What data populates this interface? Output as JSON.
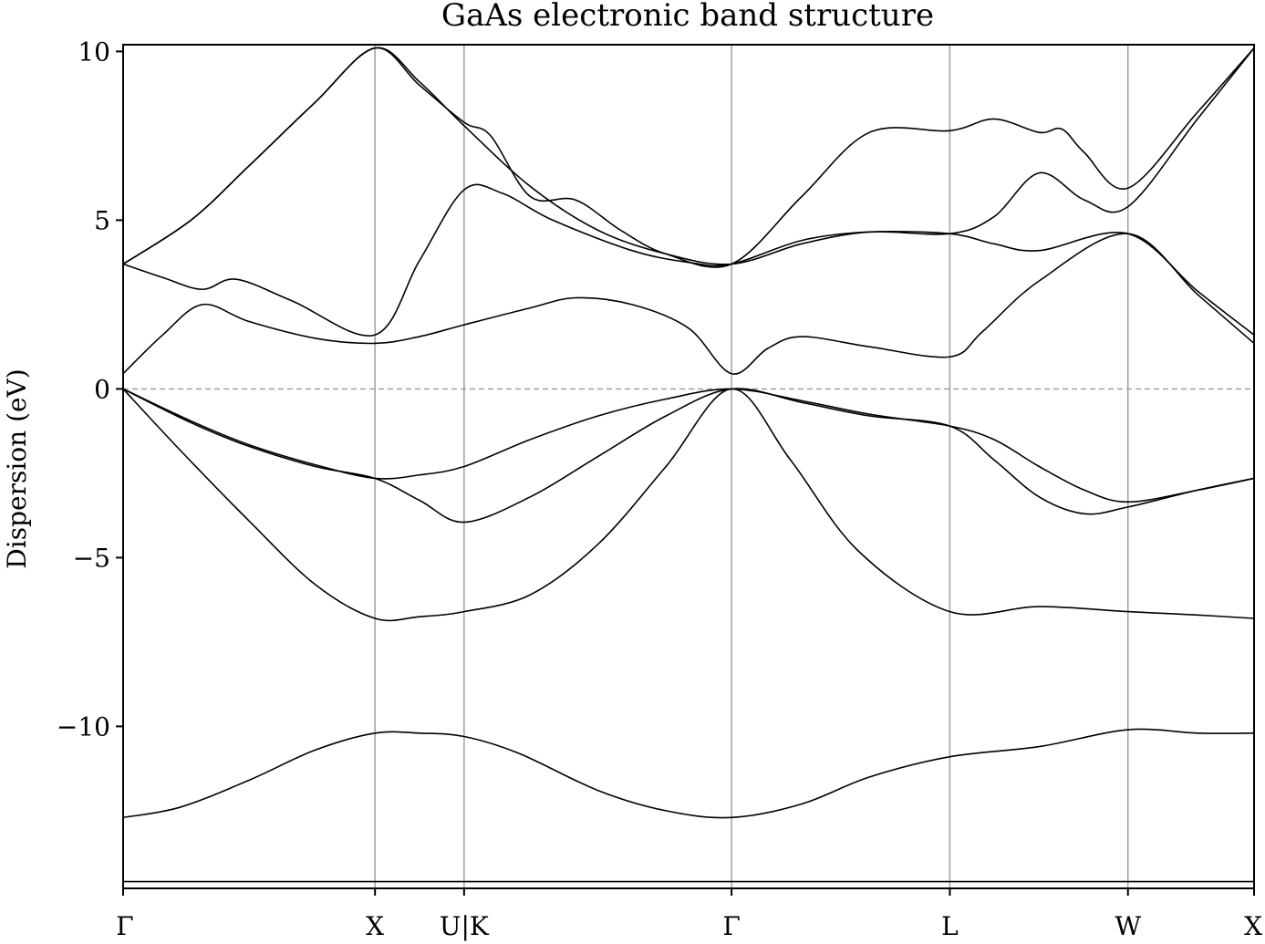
{
  "chart_data": {
    "type": "line",
    "title": "GaAs electronic band structure",
    "xlabel": "",
    "ylabel": "Dispersion (eV)",
    "ylim": [
      -14.8,
      10.2
    ],
    "xlim": [
      0,
      1
    ],
    "yticks": [
      10,
      5,
      0,
      -5,
      -10
    ],
    "ytick_labels": [
      "10",
      "5",
      "0",
      "−5",
      "−10"
    ],
    "high_symmetry_points": [
      {
        "label": "Γ",
        "x": 0.0
      },
      {
        "label": "X",
        "x": 0.2227
      },
      {
        "label": "U|K",
        "x": 0.3015
      },
      {
        "label": "Γ",
        "x": 0.538
      },
      {
        "label": "L",
        "x": 0.731
      },
      {
        "label": "W",
        "x": 0.8885
      },
      {
        "label": "X",
        "x": 1.0
      }
    ],
    "reference_line": {
      "y": 0,
      "style": "dashed"
    },
    "grid": "vertical lines at high-symmetry points",
    "colors": {
      "bands": "#000000",
      "gridlines": "#999999"
    },
    "series": [
      {
        "x": [
          0,
          0.111,
          0.2227,
          0.262,
          0.3015,
          0.42,
          0.538,
          0.635,
          0.731,
          0.81,
          0.8885,
          0.95,
          1.0
        ],
        "y": [
          -14.8,
          -14.8,
          -14.8,
          -14.8,
          -14.8,
          -14.8,
          -14.8,
          -14.8,
          -14.8,
          -14.8,
          -14.8,
          -14.8,
          -14.8
        ]
      },
      {
        "x": [
          0,
          0.111,
          0.2227,
          0.262,
          0.3015,
          0.42,
          0.538,
          0.635,
          0.731,
          0.81,
          0.8885,
          0.95,
          1.0
        ],
        "y": [
          -14.6,
          -14.6,
          -14.6,
          -14.6,
          -14.6,
          -14.6,
          -14.6,
          -14.6,
          -14.6,
          -14.6,
          -14.6,
          -14.6,
          -14.6
        ]
      },
      {
        "x": [
          0,
          0.05,
          0.111,
          0.17,
          0.2227,
          0.262,
          0.3015,
          0.35,
          0.42,
          0.48,
          0.538,
          0.6,
          0.66,
          0.731,
          0.81,
          0.8885,
          0.95,
          1.0
        ],
        "y": [
          -12.7,
          -12.4,
          -11.6,
          -10.7,
          -10.2,
          -10.2,
          -10.3,
          -10.8,
          -11.9,
          -12.5,
          -12.7,
          -12.3,
          -11.5,
          -10.9,
          -10.6,
          -10.1,
          -10.2,
          -10.2
        ]
      },
      {
        "x": [
          0,
          0.05,
          0.111,
          0.17,
          0.2227,
          0.262,
          0.3015,
          0.36,
          0.42,
          0.48,
          0.538,
          0.59,
          0.65,
          0.731,
          0.81,
          0.8885,
          0.95,
          1.0
        ],
        "y": [
          0,
          -1.8,
          -3.9,
          -5.8,
          -6.8,
          -6.75,
          -6.6,
          -6.1,
          -4.6,
          -2.3,
          0,
          -2.1,
          -4.8,
          -6.6,
          -6.45,
          -6.6,
          -6.7,
          -6.8
        ]
      },
      {
        "x": [
          0,
          0.06,
          0.111,
          0.17,
          0.2227,
          0.262,
          0.3015,
          0.36,
          0.42,
          0.48,
          0.538,
          0.6,
          0.66,
          0.731,
          0.77,
          0.81,
          0.85,
          0.8885,
          0.95,
          1.0
        ],
        "y": [
          0,
          -1.0,
          -1.7,
          -2.3,
          -2.65,
          -3.3,
          -3.95,
          -3.2,
          -2.0,
          -0.8,
          0,
          -0.4,
          -0.8,
          -1.1,
          -2.1,
          -3.2,
          -3.7,
          -3.5,
          -3.0,
          -2.65
        ]
      },
      {
        "x": [
          0,
          0.06,
          0.111,
          0.17,
          0.2227,
          0.262,
          0.3015,
          0.36,
          0.42,
          0.48,
          0.538,
          0.6,
          0.66,
          0.731,
          0.77,
          0.81,
          0.85,
          0.8885,
          0.95,
          1.0
        ],
        "y": [
          0,
          -0.95,
          -1.65,
          -2.25,
          -2.65,
          -2.55,
          -2.3,
          -1.5,
          -0.8,
          -0.3,
          0,
          -0.35,
          -0.75,
          -1.1,
          -1.5,
          -2.3,
          -3.0,
          -3.35,
          -3.0,
          -2.65
        ]
      },
      {
        "x": [
          0,
          0.035,
          0.07,
          0.111,
          0.17,
          0.2227,
          0.262,
          0.3015,
          0.36,
          0.4,
          0.45,
          0.5,
          0.538,
          0.57,
          0.6,
          0.66,
          0.731,
          0.76,
          0.81,
          0.8885,
          0.95,
          1.0
        ],
        "y": [
          0.45,
          1.6,
          2.5,
          2.0,
          1.5,
          1.35,
          1.55,
          1.9,
          2.4,
          2.7,
          2.5,
          1.8,
          0.45,
          1.2,
          1.55,
          1.25,
          0.95,
          1.7,
          3.2,
          4.6,
          2.8,
          1.35
        ]
      },
      {
        "x": [
          0,
          0.035,
          0.07,
          0.1,
          0.15,
          0.2227,
          0.262,
          0.3015,
          0.335,
          0.38,
          0.45,
          0.5,
          0.538,
          0.6,
          0.66,
          0.731,
          0.77,
          0.81,
          0.8885,
          0.95,
          1.0
        ],
        "y": [
          3.7,
          3.3,
          2.95,
          3.25,
          2.6,
          1.6,
          3.8,
          5.9,
          5.8,
          5.0,
          4.1,
          3.75,
          3.7,
          4.4,
          4.65,
          4.6,
          4.3,
          4.1,
          4.6,
          2.9,
          1.6
        ]
      },
      {
        "x": [
          0,
          0.06,
          0.111,
          0.17,
          0.2227,
          0.262,
          0.3015,
          0.36,
          0.42,
          0.48,
          0.538,
          0.6,
          0.66,
          0.731,
          0.77,
          0.81,
          0.85,
          0.8885,
          0.95,
          1.0
        ],
        "y": [
          3.7,
          5.0,
          6.6,
          8.5,
          10.1,
          9.1,
          7.8,
          6.0,
          4.7,
          4.0,
          3.7,
          4.3,
          4.65,
          4.6,
          5.1,
          6.4,
          5.6,
          5.4,
          8.0,
          10.1
        ]
      },
      {
        "x": [
          0,
          0.06,
          0.111,
          0.17,
          0.2227,
          0.262,
          0.3015,
          0.325,
          0.36,
          0.4,
          0.44,
          0.48,
          0.538,
          0.6,
          0.66,
          0.731,
          0.77,
          0.81,
          0.83,
          0.85,
          0.8885,
          0.95,
          1.0
        ],
        "y": [
          3.7,
          5.0,
          6.6,
          8.5,
          10.1,
          9.0,
          7.9,
          7.5,
          5.7,
          5.6,
          4.7,
          4.0,
          3.7,
          5.7,
          7.6,
          7.65,
          8.0,
          7.6,
          7.7,
          7.0,
          5.95,
          8.2,
          10.1
        ]
      }
    ]
  }
}
